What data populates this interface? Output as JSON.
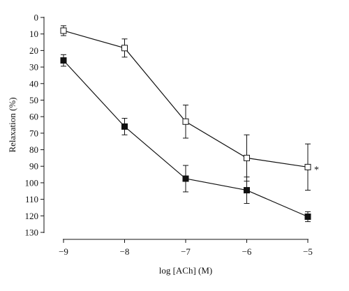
{
  "chart_data": {
    "type": "line",
    "title": "",
    "xlabel": "log [ACh] (M)",
    "ylabel": "Relaxation (%)",
    "x": [
      -9,
      -8,
      -7,
      -6,
      -5
    ],
    "xlim": [
      -9,
      -5
    ],
    "ylim": [
      0,
      130
    ],
    "y_axis_inverted": true,
    "x_ticks": [
      "−9",
      "−8",
      "−7",
      "−6",
      "−5"
    ],
    "y_ticks": [
      "0",
      "10",
      "20",
      "30",
      "40",
      "50",
      "60",
      "70",
      "80",
      "90",
      "100",
      "110",
      "120",
      "130"
    ],
    "y_tick_values": [
      0,
      10,
      20,
      30,
      40,
      50,
      60,
      70,
      80,
      90,
      100,
      110,
      120,
      130
    ],
    "grid": false,
    "series": [
      {
        "marker": "open-square",
        "values": [
          8,
          18.5,
          63,
          85,
          90.5
        ],
        "errors": [
          3,
          5.5,
          10,
          14,
          14
        ]
      },
      {
        "marker": "filled-square",
        "values": [
          26,
          66,
          97.5,
          104.5,
          120.5
        ],
        "errors": [
          3.5,
          5,
          8,
          8,
          3
        ]
      }
    ],
    "annotations": [
      {
        "text": "*",
        "x": -5,
        "y": 90.5
      }
    ]
  }
}
